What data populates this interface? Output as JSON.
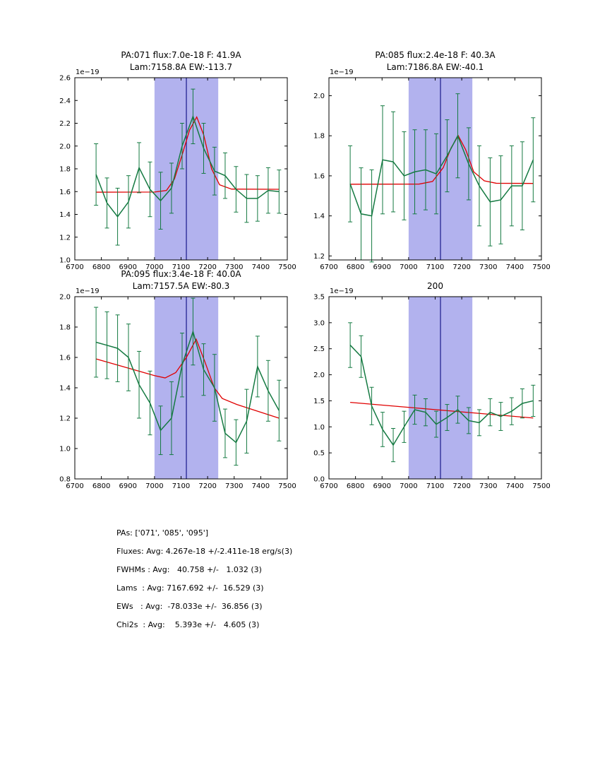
{
  "colors": {
    "data": "#157a42",
    "fit": "#e00000",
    "band": "#b2b2ee",
    "vline": "#1a1a8c",
    "frame": "#000000",
    "text": "#000000"
  },
  "stats": {
    "lines": [
      "PAs: ['071', '085', '095']",
      "Fluxes: Avg: 4.267e-18 +/-2.411e-18 erg/s(3)",
      "FWHMs : Avg:   40.758 +/-   1.032 (3)",
      "Lams  : Avg: 7167.692 +/-  16.529 (3)",
      "EWs   : Avg:  -78.033e +/-  36.856 (3)",
      "Chi2s  : Avg:    5.393e +/-   4.605 (3)"
    ]
  },
  "chart_data": [
    {
      "type": "line",
      "title_lines": [
        "PA:071 flux:7.0e-18 F: 41.9A",
        "Lam:7158.8A EW:-113.7"
      ],
      "offset_label": "1e−19",
      "xlabel": "",
      "ylabel": "",
      "xlim": [
        6700,
        7500
      ],
      "xticks": [
        6700,
        6800,
        6900,
        7000,
        7100,
        7200,
        7300,
        7400,
        7500
      ],
      "ylim": [
        1.0,
        2.6
      ],
      "yticks": [
        1.0,
        1.2,
        1.4,
        1.6,
        1.8,
        2.0,
        2.2,
        2.4,
        2.6
      ],
      "band": [
        7000,
        7240
      ],
      "vline": 7120,
      "x": [
        6780,
        6821,
        6861,
        6902,
        6942,
        6983,
        7023,
        7064,
        7104,
        7145,
        7185,
        7226,
        7266,
        7307,
        7347,
        7388,
        7428,
        7469
      ],
      "y": [
        1.75,
        1.5,
        1.38,
        1.51,
        1.81,
        1.62,
        1.52,
        1.63,
        2.0,
        2.26,
        1.98,
        1.78,
        1.74,
        1.62,
        1.54,
        1.54,
        1.61,
        1.6
      ],
      "yerr": [
        0.27,
        0.22,
        0.25,
        0.23,
        0.22,
        0.24,
        0.25,
        0.22,
        0.2,
        0.24,
        0.22,
        0.21,
        0.2,
        0.2,
        0.21,
        0.2,
        0.2,
        0.19
      ],
      "fit_x": [
        6780,
        7000,
        7045,
        7075,
        7105,
        7132,
        7159,
        7185,
        7215,
        7245,
        7290,
        7469
      ],
      "fit_y": [
        1.595,
        1.596,
        1.61,
        1.71,
        1.93,
        2.14,
        2.255,
        2.1,
        1.8,
        1.66,
        1.622,
        1.62
      ]
    },
    {
      "type": "line",
      "title_lines": [
        "PA:085 flux:2.4e-18 F: 40.3A",
        "Lam:7186.8A EW:-40.1"
      ],
      "offset_label": "1e−19",
      "xlabel": "",
      "ylabel": "",
      "xlim": [
        6700,
        7500
      ],
      "xticks": [
        6700,
        6800,
        6900,
        7000,
        7100,
        7200,
        7300,
        7400,
        7500
      ],
      "ylim": [
        1.18,
        2.09
      ],
      "yticks": [
        1.2,
        1.4,
        1.6,
        1.8,
        2.0
      ],
      "band": [
        7000,
        7240
      ],
      "vline": 7120,
      "x": [
        6780,
        6821,
        6861,
        6902,
        6942,
        6983,
        7023,
        7064,
        7104,
        7145,
        7185,
        7226,
        7266,
        7307,
        7347,
        7388,
        7428,
        7469
      ],
      "y": [
        1.56,
        1.41,
        1.4,
        1.68,
        1.67,
        1.6,
        1.62,
        1.63,
        1.61,
        1.7,
        1.8,
        1.66,
        1.55,
        1.47,
        1.48,
        1.55,
        1.55,
        1.68
      ],
      "yerr": [
        0.19,
        0.23,
        0.23,
        0.27,
        0.25,
        0.22,
        0.21,
        0.2,
        0.2,
        0.18,
        0.21,
        0.18,
        0.2,
        0.22,
        0.22,
        0.2,
        0.22,
        0.21
      ],
      "fit_x": [
        6780,
        7040,
        7090,
        7130,
        7160,
        7187,
        7215,
        7245,
        7285,
        7330,
        7469
      ],
      "fit_y": [
        1.558,
        1.559,
        1.572,
        1.64,
        1.74,
        1.8,
        1.73,
        1.62,
        1.575,
        1.563,
        1.562
      ]
    },
    {
      "type": "line",
      "title_lines": [
        "PA:095 flux:3.4e-18 F: 40.0A",
        "Lam:7157.5A EW:-80.3"
      ],
      "offset_label": "1e−19",
      "xlabel": "",
      "ylabel": "",
      "xlim": [
        6700,
        7500
      ],
      "xticks": [
        6700,
        6800,
        6900,
        7000,
        7100,
        7200,
        7300,
        7400,
        7500
      ],
      "ylim": [
        0.8,
        2.0
      ],
      "yticks": [
        0.8,
        1.0,
        1.2,
        1.4,
        1.6,
        1.8,
        2.0
      ],
      "band": [
        7000,
        7240
      ],
      "vline": 7120,
      "x": [
        6780,
        6821,
        6861,
        6902,
        6942,
        6983,
        7023,
        7064,
        7104,
        7145,
        7185,
        7226,
        7266,
        7307,
        7347,
        7388,
        7428,
        7469
      ],
      "y": [
        1.7,
        1.68,
        1.66,
        1.6,
        1.42,
        1.3,
        1.12,
        1.2,
        1.55,
        1.77,
        1.52,
        1.4,
        1.1,
        1.04,
        1.18,
        1.54,
        1.38,
        1.25
      ],
      "yerr": [
        0.23,
        0.22,
        0.22,
        0.22,
        0.22,
        0.21,
        0.16,
        0.24,
        0.21,
        0.22,
        0.17,
        0.22,
        0.16,
        0.15,
        0.21,
        0.2,
        0.2,
        0.2
      ],
      "fit_x": [
        6780,
        6900,
        7000,
        7040,
        7080,
        7120,
        7157,
        7190,
        7225,
        7255,
        7310,
        7469
      ],
      "fit_y": [
        1.59,
        1.53,
        1.48,
        1.465,
        1.5,
        1.6,
        1.72,
        1.57,
        1.4,
        1.33,
        1.29,
        1.2
      ]
    },
    {
      "type": "line",
      "title_lines": [
        "200"
      ],
      "offset_label": "1e−19",
      "xlabel": "",
      "ylabel": "",
      "xlim": [
        6700,
        7500
      ],
      "xticks": [
        6700,
        6800,
        6900,
        7000,
        7100,
        7200,
        7300,
        7400,
        7500
      ],
      "ylim": [
        0.0,
        3.5
      ],
      "yticks": [
        0.0,
        0.5,
        1.0,
        1.5,
        2.0,
        2.5,
        3.0,
        3.5
      ],
      "band": [
        7000,
        7240
      ],
      "vline": 7120,
      "x": [
        6780,
        6821,
        6861,
        6902,
        6942,
        6983,
        7023,
        7064,
        7104,
        7145,
        7185,
        7226,
        7266,
        7307,
        7347,
        7388,
        7428,
        7469
      ],
      "y": [
        2.57,
        2.35,
        1.4,
        0.95,
        0.65,
        1.0,
        1.33,
        1.28,
        1.05,
        1.18,
        1.33,
        1.12,
        1.08,
        1.28,
        1.2,
        1.3,
        1.45,
        1.5
      ],
      "yerr": [
        0.43,
        0.4,
        0.36,
        0.33,
        0.32,
        0.3,
        0.28,
        0.26,
        0.25,
        0.25,
        0.26,
        0.25,
        0.25,
        0.26,
        0.27,
        0.26,
        0.28,
        0.3
      ],
      "fit_x": [
        6780,
        7469
      ],
      "fit_y": [
        1.47,
        1.17
      ]
    }
  ]
}
